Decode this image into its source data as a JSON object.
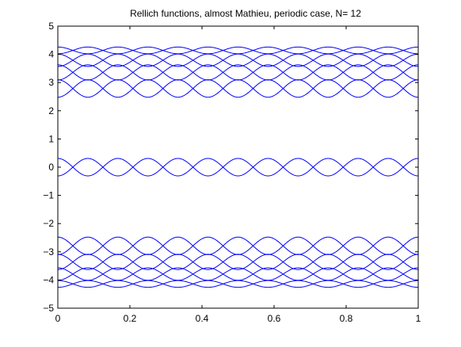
{
  "chart_data": {
    "type": "line",
    "title": "Rellich functions, almost Mathieu, periodic case,  N= 12",
    "xlabel": "",
    "ylabel": "",
    "xlim": [
      0,
      1
    ],
    "ylim": [
      -5,
      5
    ],
    "x_ticks": [
      0,
      0.2,
      0.4,
      0.6,
      0.8,
      1
    ],
    "x_tick_labels": [
      "0",
      "0.2",
      "0.4",
      "0.6",
      "0.8",
      "1"
    ],
    "y_ticks": [
      -5,
      -4,
      -3,
      -2,
      -1,
      0,
      1,
      2,
      3,
      4,
      5
    ],
    "y_tick_labels": [
      "−5",
      "−4",
      "−3",
      "−2",
      "−1",
      "0",
      "1",
      "2",
      "3",
      "4",
      "5"
    ],
    "grid": false,
    "line_color": "#0000ff",
    "oscillations_per_unit": 12,
    "bands": [
      {
        "center": 4.14,
        "amplitude": 0.12
      },
      {
        "center": 3.79,
        "amplitude": 0.22
      },
      {
        "center": 3.36,
        "amplitude": 0.27
      },
      {
        "center": 2.79,
        "amplitude": 0.31
      },
      {
        "center": 0.0,
        "amplitude": 0.31
      },
      {
        "center": -2.79,
        "amplitude": 0.31
      },
      {
        "center": -3.36,
        "amplitude": 0.27
      },
      {
        "center": -3.79,
        "amplitude": 0.22
      },
      {
        "center": -4.14,
        "amplitude": 0.12
      }
    ]
  }
}
